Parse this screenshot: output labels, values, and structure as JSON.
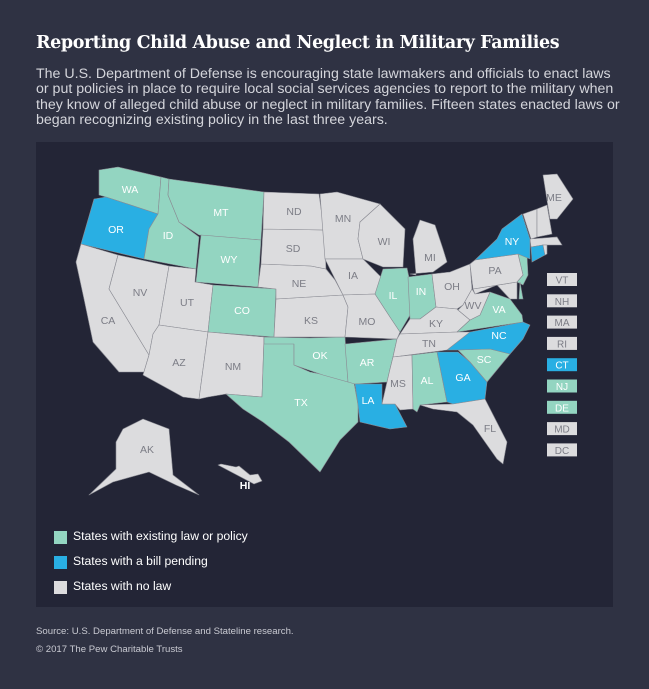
{
  "title": "Reporting Child Abuse and Neglect in Military Families",
  "intro": "The U.S. Department of Defense is encouraging state lawmakers and officials to enact laws or put policies in place to require local social services agencies to report to the military when they know of alleged child abuse or neglect in military families. Fifteen states enacted laws or began recognizing existing policy in the last three years.",
  "colors": {
    "existing": "#93d5c1",
    "pending": "#29afe3",
    "none": "#dcdcde",
    "label_dark": "#7c7d86",
    "label_light": "#ffffff"
  },
  "legend": [
    {
      "key": "existing",
      "label": "States with existing law or policy"
    },
    {
      "key": "pending",
      "label": "States with a bill pending"
    },
    {
      "key": "none",
      "label": "States with no law"
    }
  ],
  "states": [
    {
      "code": "WA",
      "status": "existing"
    },
    {
      "code": "OR",
      "status": "pending"
    },
    {
      "code": "CA",
      "status": "none"
    },
    {
      "code": "NV",
      "status": "none"
    },
    {
      "code": "ID",
      "status": "existing"
    },
    {
      "code": "MT",
      "status": "existing"
    },
    {
      "code": "WY",
      "status": "existing"
    },
    {
      "code": "UT",
      "status": "none"
    },
    {
      "code": "CO",
      "status": "existing"
    },
    {
      "code": "AZ",
      "status": "none"
    },
    {
      "code": "NM",
      "status": "none"
    },
    {
      "code": "TX",
      "status": "existing"
    },
    {
      "code": "OK",
      "status": "existing"
    },
    {
      "code": "KS",
      "status": "none"
    },
    {
      "code": "NE",
      "status": "none"
    },
    {
      "code": "SD",
      "status": "none"
    },
    {
      "code": "ND",
      "status": "none"
    },
    {
      "code": "MN",
      "status": "none"
    },
    {
      "code": "IA",
      "status": "none"
    },
    {
      "code": "MO",
      "status": "none"
    },
    {
      "code": "AR",
      "status": "existing"
    },
    {
      "code": "LA",
      "status": "pending"
    },
    {
      "code": "WI",
      "status": "none"
    },
    {
      "code": "IL",
      "status": "existing"
    },
    {
      "code": "MI",
      "status": "none"
    },
    {
      "code": "IN",
      "status": "existing"
    },
    {
      "code": "OH",
      "status": "none"
    },
    {
      "code": "KY",
      "status": "none"
    },
    {
      "code": "TN",
      "status": "none"
    },
    {
      "code": "MS",
      "status": "none"
    },
    {
      "code": "AL",
      "status": "existing"
    },
    {
      "code": "GA",
      "status": "pending"
    },
    {
      "code": "FL",
      "status": "none"
    },
    {
      "code": "SC",
      "status": "existing"
    },
    {
      "code": "NC",
      "status": "pending"
    },
    {
      "code": "VA",
      "status": "existing"
    },
    {
      "code": "WV",
      "status": "none"
    },
    {
      "code": "PA",
      "status": "none"
    },
    {
      "code": "NY",
      "status": "pending"
    },
    {
      "code": "ME",
      "status": "none"
    },
    {
      "code": "AK",
      "status": "none"
    },
    {
      "code": "HI",
      "status": "none"
    }
  ],
  "small_states": [
    {
      "code": "VT",
      "status": "none"
    },
    {
      "code": "NH",
      "status": "none"
    },
    {
      "code": "MA",
      "status": "none"
    },
    {
      "code": "RI",
      "status": "none"
    },
    {
      "code": "CT",
      "status": "pending"
    },
    {
      "code": "NJ",
      "status": "existing"
    },
    {
      "code": "DE",
      "status": "existing"
    },
    {
      "code": "MD",
      "status": "none"
    },
    {
      "code": "DC",
      "status": "none"
    }
  ],
  "source": "Source: U.S. Department of Defense and Stateline research.",
  "copyright": "© 2017 The Pew Charitable Trusts"
}
